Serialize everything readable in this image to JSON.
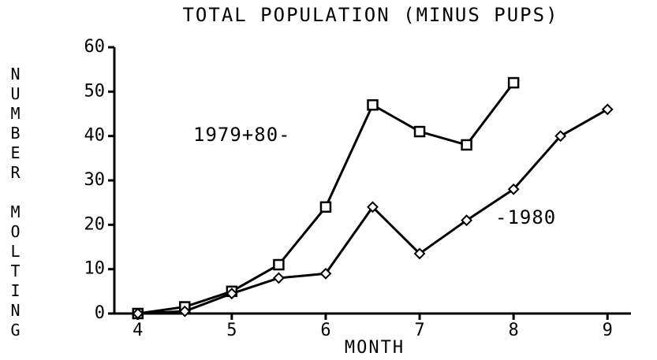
{
  "chart_data": {
    "type": "line",
    "title": "TOTAL POPULATION (MINUS PUPS)",
    "x_label": "MONTH",
    "y_label": "NUMBER MOLTING",
    "xlim": [
      3.75,
      9.25
    ],
    "xticks": [
      4,
      5,
      6,
      7,
      8,
      9
    ],
    "ylim": [
      0,
      60
    ],
    "yticks": [
      0,
      10,
      20,
      30,
      40,
      50,
      60
    ],
    "grid": false,
    "series": [
      {
        "name": "1979+80-",
        "color": "#000000",
        "marker": "square",
        "x": [
          4,
          4.5,
          5,
          5.5,
          6,
          6.5,
          7,
          7.5,
          8
        ],
        "values": [
          0,
          1.5,
          5,
          11,
          24,
          47,
          41,
          38,
          52
        ]
      },
      {
        "name": "-1980",
        "color": "#000000",
        "marker": "diamond",
        "x": [
          4,
          4.5,
          5,
          5.5,
          6,
          6.5,
          7,
          7.5,
          8,
          8.5,
          9
        ],
        "values": [
          0,
          0.5,
          4.5,
          8,
          9,
          24,
          13.5,
          21,
          28,
          40,
          46
        ]
      }
    ]
  }
}
